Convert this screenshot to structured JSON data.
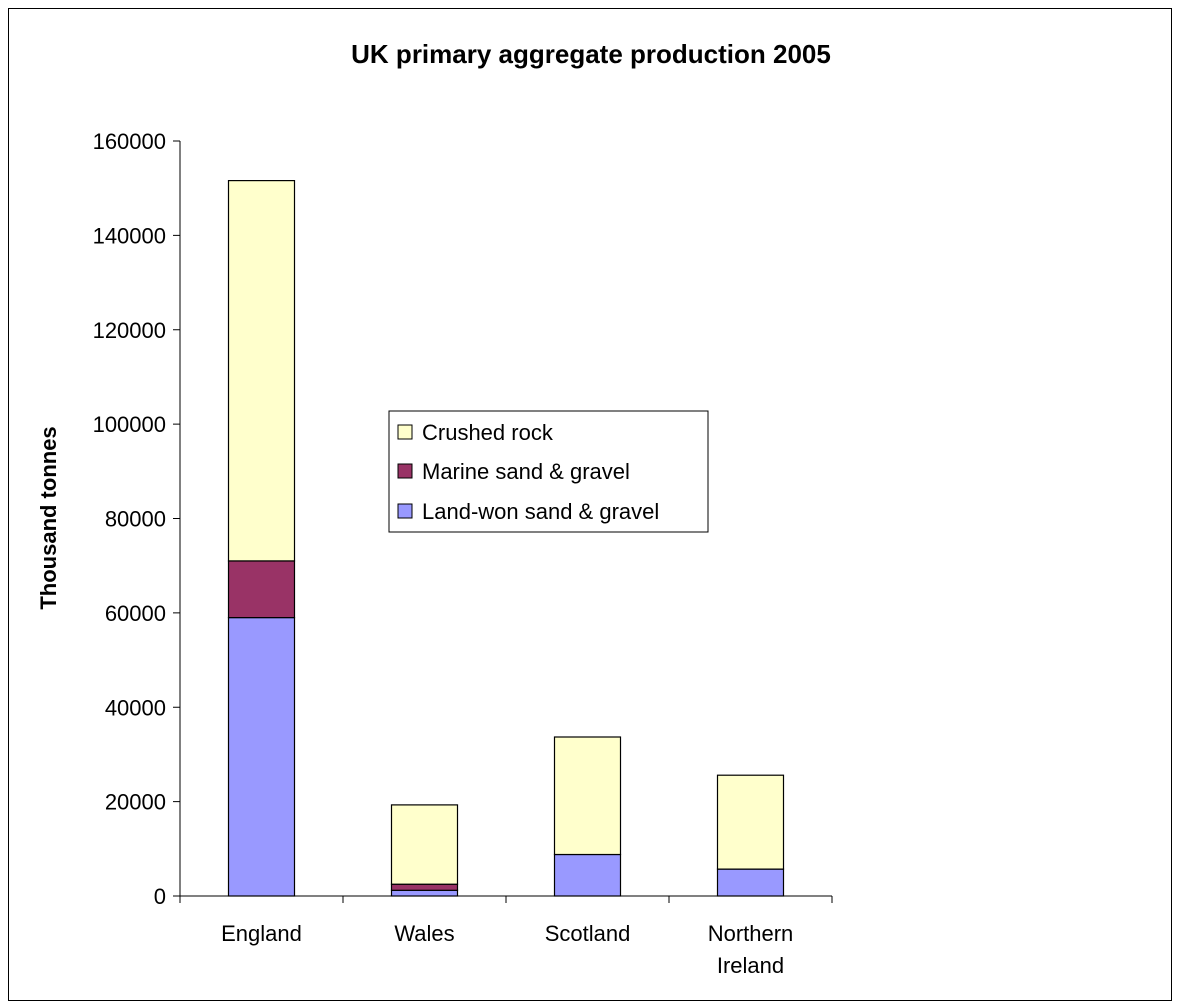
{
  "chart_data": {
    "type": "bar",
    "stacked": true,
    "title": "UK primary aggregate production 2005",
    "xlabel": "",
    "ylabel": "Thousand tonnes",
    "ylim": [
      0,
      160000
    ],
    "yticks": [
      "0",
      "20000",
      "40000",
      "60000",
      "80000",
      "100000",
      "120000",
      "140000",
      "160000"
    ],
    "yticks_values": [
      0,
      20000,
      40000,
      60000,
      80000,
      100000,
      120000,
      140000,
      160000
    ],
    "categories": [
      [
        "England"
      ],
      [
        "Wales"
      ],
      [
        "Scotland"
      ],
      [
        "Northern",
        "Ireland"
      ]
    ],
    "series": [
      {
        "name": "Land-won sand & gravel",
        "color": "#9999ff",
        "values": [
          59000,
          1200,
          8800,
          5700
        ]
      },
      {
        "name": "Marine sand & gravel",
        "color": "#993366",
        "values": [
          12000,
          1300,
          0,
          0
        ]
      },
      {
        "name": "Crushed rock",
        "color": "#ffffcc",
        "values": [
          80600,
          16800,
          24900,
          19900
        ]
      }
    ],
    "legend_order": [
      2,
      1,
      0
    ],
    "grid": false,
    "legend_position": "center"
  }
}
